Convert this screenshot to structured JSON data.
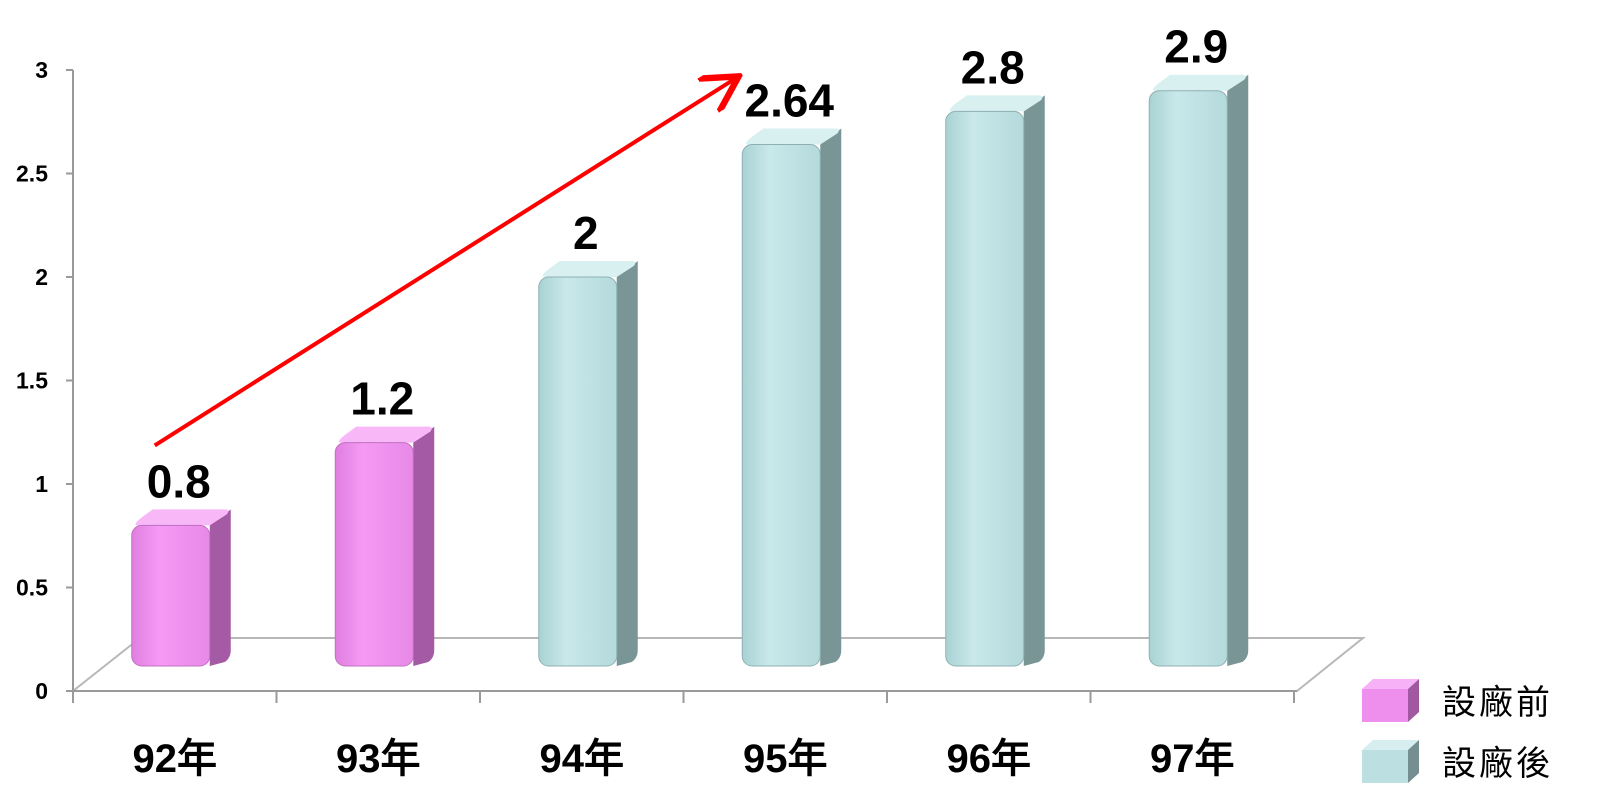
{
  "chart_data": {
    "type": "bar",
    "categories": [
      "92年",
      "93年",
      "94年",
      "95年",
      "96年",
      "97年"
    ],
    "values": [
      0.8,
      1.2,
      2,
      2.64,
      2.8,
      2.9
    ],
    "data_labels": [
      "0.8",
      "1.2",
      "2",
      "2.64",
      "2.8",
      "2.9"
    ],
    "groups": [
      0,
      0,
      1,
      1,
      1,
      1
    ],
    "yticks": [
      "0",
      "0.5",
      "1",
      "1.5",
      "2",
      "2.5",
      "3"
    ],
    "ylim": [
      0,
      3
    ],
    "legend": [
      {
        "label": "設廠前",
        "color": "#ee8fee"
      },
      {
        "label": "設廠後",
        "color": "#bce0e2"
      }
    ],
    "legend_position": "bottom-right",
    "trend_arrow": {
      "from_category": "92年",
      "to_category": "95年",
      "color": "#ff0000"
    },
    "style": "3d-cylinder-bars"
  }
}
